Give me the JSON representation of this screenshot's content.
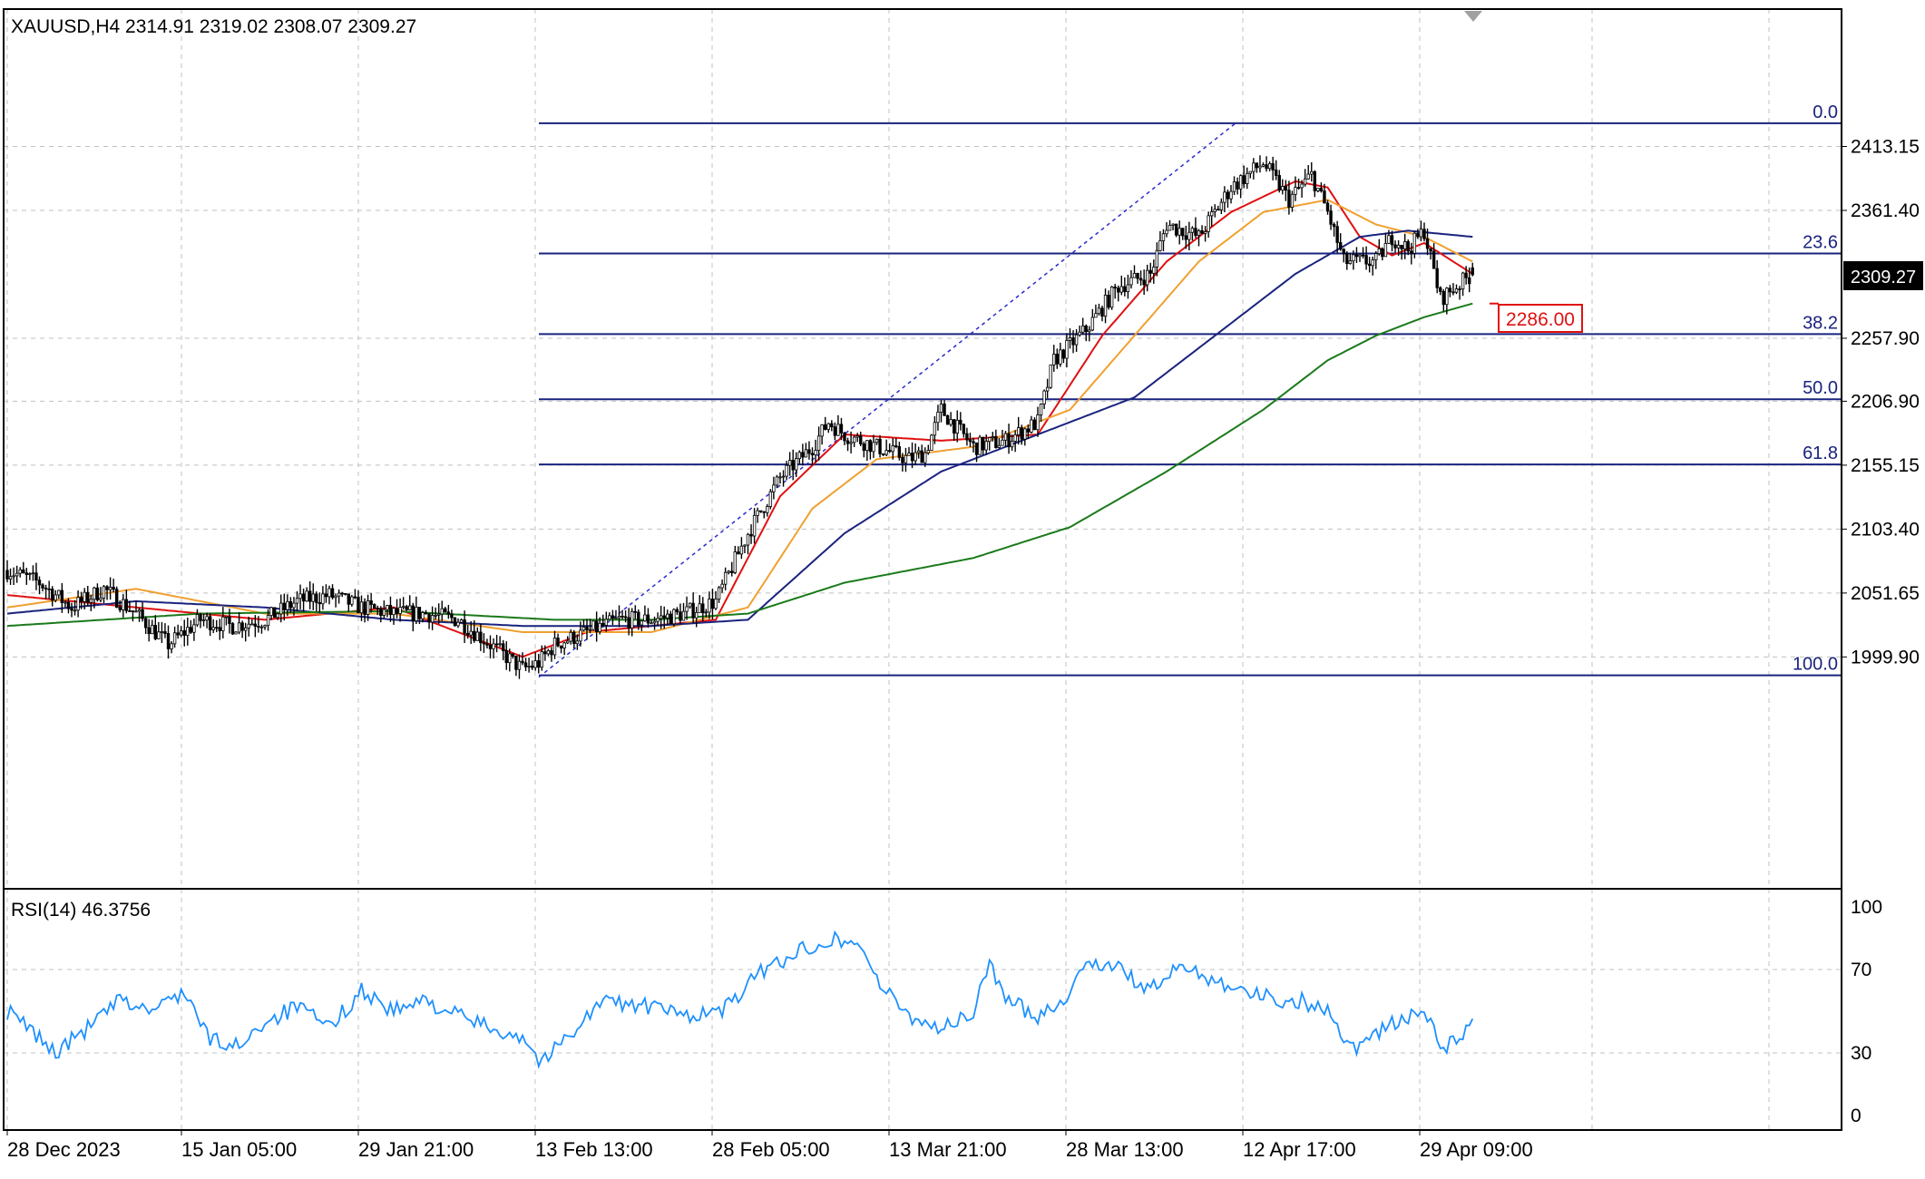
{
  "symbol_header": "XAUUSD,H4  2314.91 2319.02 2308.07 2309.27",
  "indicator_header": "RSI(14) 46.3756",
  "colors": {
    "background": "#ffffff",
    "frame": "#000000",
    "grid": "#c0c0c0",
    "candle": "#000000",
    "fib": "#1a237e",
    "trend": "#2a2ad0",
    "ma_fast": "#e01010",
    "ma_mid": "#f0a030",
    "ma_slow": "#1a237e",
    "ma_long": "#1a7a1a",
    "rsi": "#1e90ff",
    "alert": "#e01010"
  },
  "chart_data": [
    {
      "type": "line",
      "subtype": "candlestick",
      "instrument": "XAUUSD",
      "timeframe": "H4",
      "ohlc_last": {
        "open": 2314.91,
        "high": 2319.02,
        "low": 2308.07,
        "close": 2309.27
      },
      "x_tick_labels": [
        "28 Dec 2023",
        "15 Jan 05:00",
        "29 Jan 21:00",
        "13 Feb 13:00",
        "28 Feb 05:00",
        "13 Mar 21:00",
        "28 Mar 13:00",
        "12 Apr 17:00",
        "29 Apr 09:00"
      ],
      "y_tick_labels": [
        "2413.15",
        "2361.40",
        "2257.90",
        "2206.90",
        "2155.15",
        "2103.40",
        "2051.65",
        "1999.90"
      ],
      "ylim": [
        1975,
        2460
      ],
      "current_price": "2309.27",
      "alert_level": "2286.00",
      "fibonacci": {
        "high": 2432,
        "low": 1985,
        "levels": [
          {
            "label": "0.0",
            "ratio": 0.0
          },
          {
            "label": "23.6",
            "ratio": 0.236
          },
          {
            "label": "38.2",
            "ratio": 0.382
          },
          {
            "label": "50.0",
            "ratio": 0.5
          },
          {
            "label": "61.8",
            "ratio": 0.618
          },
          {
            "label": "100.0",
            "ratio": 1.0
          }
        ]
      },
      "trendline": {
        "from": {
          "bar": 0,
          "y": 1985
        },
        "to": {
          "bar": 0,
          "y": 2432
        }
      },
      "price_anchors": [
        [
          0,
          2070
        ],
        [
          10,
          2060
        ],
        [
          20,
          2040
        ],
        [
          30,
          2055
        ],
        [
          40,
          2035
        ],
        [
          50,
          2010
        ],
        [
          60,
          2030
        ],
        [
          70,
          2025
        ],
        [
          80,
          2030
        ],
        [
          90,
          2045
        ],
        [
          100,
          2050
        ],
        [
          110,
          2040
        ],
        [
          120,
          2035
        ],
        [
          130,
          2035
        ],
        [
          140,
          2030
        ],
        [
          150,
          2010
        ],
        [
          160,
          1990
        ],
        [
          165,
          1995
        ],
        [
          170,
          2010
        ],
        [
          180,
          2020
        ],
        [
          190,
          2030
        ],
        [
          200,
          2030
        ],
        [
          210,
          2035
        ],
        [
          220,
          2045
        ],
        [
          230,
          2100
        ],
        [
          240,
          2145
        ],
        [
          250,
          2170
        ],
        [
          255,
          2190
        ],
        [
          260,
          2180
        ],
        [
          270,
          2170
        ],
        [
          280,
          2160
        ],
        [
          285,
          2165
        ],
        [
          290,
          2200
        ],
        [
          295,
          2185
        ],
        [
          300,
          2170
        ],
        [
          310,
          2175
        ],
        [
          320,
          2190
        ],
        [
          325,
          2240
        ],
        [
          335,
          2265
        ],
        [
          345,
          2300
        ],
        [
          355,
          2310
        ],
        [
          360,
          2350
        ],
        [
          370,
          2340
        ],
        [
          380,
          2380
        ],
        [
          390,
          2400
        ],
        [
          398,
          2370
        ],
        [
          405,
          2390
        ],
        [
          410,
          2360
        ],
        [
          415,
          2320
        ],
        [
          425,
          2320
        ],
        [
          430,
          2340
        ],
        [
          435,
          2330
        ],
        [
          440,
          2345
        ],
        [
          445,
          2290
        ],
        [
          450,
          2300
        ],
        [
          455,
          2310
        ]
      ],
      "series": [
        {
          "name": "",
          "role": "ma_fast",
          "values": [
            [
              0,
              2050
            ],
            [
              40,
              2040
            ],
            [
              80,
              2030
            ],
            [
              120,
              2040
            ],
            [
              160,
              2000
            ],
            [
              180,
              2020
            ],
            [
              220,
              2030
            ],
            [
              240,
              2130
            ],
            [
              260,
              2180
            ],
            [
              290,
              2175
            ],
            [
              320,
              2180
            ],
            [
              340,
              2260
            ],
            [
              360,
              2320
            ],
            [
              380,
              2360
            ],
            [
              400,
              2385
            ],
            [
              410,
              2380
            ],
            [
              420,
              2340
            ],
            [
              430,
              2325
            ],
            [
              440,
              2335
            ],
            [
              455,
              2310
            ]
          ]
        },
        {
          "name": "",
          "role": "ma_mid",
          "values": [
            [
              0,
              2040
            ],
            [
              40,
              2055
            ],
            [
              80,
              2035
            ],
            [
              120,
              2035
            ],
            [
              160,
              2020
            ],
            [
              200,
              2020
            ],
            [
              230,
              2040
            ],
            [
              250,
              2120
            ],
            [
              270,
              2160
            ],
            [
              300,
              2170
            ],
            [
              330,
              2200
            ],
            [
              350,
              2260
            ],
            [
              370,
              2320
            ],
            [
              390,
              2360
            ],
            [
              410,
              2370
            ],
            [
              425,
              2350
            ],
            [
              440,
              2340
            ],
            [
              455,
              2320
            ]
          ]
        },
        {
          "name": "",
          "role": "ma_slow",
          "values": [
            [
              0,
              2035
            ],
            [
              40,
              2045
            ],
            [
              80,
              2040
            ],
            [
              120,
              2030
            ],
            [
              160,
              2025
            ],
            [
              200,
              2025
            ],
            [
              230,
              2030
            ],
            [
              260,
              2100
            ],
            [
              290,
              2150
            ],
            [
              320,
              2180
            ],
            [
              350,
              2210
            ],
            [
              380,
              2270
            ],
            [
              400,
              2310
            ],
            [
              420,
              2340
            ],
            [
              435,
              2345
            ],
            [
              455,
              2340
            ]
          ]
        },
        {
          "name": "",
          "role": "ma_long",
          "values": [
            [
              0,
              2025
            ],
            [
              60,
              2035
            ],
            [
              120,
              2037
            ],
            [
              170,
              2030
            ],
            [
              200,
              2030
            ],
            [
              230,
              2035
            ],
            [
              260,
              2060
            ],
            [
              300,
              2080
            ],
            [
              330,
              2105
            ],
            [
              360,
              2150
            ],
            [
              390,
              2200
            ],
            [
              410,
              2240
            ],
            [
              425,
              2260
            ],
            [
              440,
              2275
            ],
            [
              455,
              2286
            ]
          ]
        }
      ]
    },
    {
      "type": "line",
      "name": "RSI(14)",
      "value": "46.3756",
      "y_tick_labels": [
        "100",
        "70",
        "30",
        "0"
      ],
      "ylim": [
        0,
        100
      ],
      "rsi_anchors": [
        [
          0,
          50
        ],
        [
          8,
          40
        ],
        [
          15,
          30
        ],
        [
          25,
          42
        ],
        [
          35,
          55
        ],
        [
          45,
          50
        ],
        [
          55,
          60
        ],
        [
          62,
          38
        ],
        [
          70,
          32
        ],
        [
          80,
          45
        ],
        [
          90,
          52
        ],
        [
          100,
          42
        ],
        [
          110,
          60
        ],
        [
          120,
          50
        ],
        [
          130,
          55
        ],
        [
          140,
          48
        ],
        [
          150,
          42
        ],
        [
          160,
          38
        ],
        [
          166,
          25
        ],
        [
          175,
          40
        ],
        [
          185,
          55
        ],
        [
          200,
          52
        ],
        [
          210,
          48
        ],
        [
          222,
          50
        ],
        [
          235,
          70
        ],
        [
          245,
          78
        ],
        [
          255,
          85
        ],
        [
          265,
          82
        ],
        [
          272,
          60
        ],
        [
          280,
          48
        ],
        [
          290,
          42
        ],
        [
          300,
          48
        ],
        [
          305,
          75
        ],
        [
          310,
          55
        ],
        [
          320,
          48
        ],
        [
          330,
          58
        ],
        [
          335,
          75
        ],
        [
          345,
          70
        ],
        [
          355,
          60
        ],
        [
          365,
          72
        ],
        [
          375,
          65
        ],
        [
          385,
          60
        ],
        [
          395,
          55
        ],
        [
          402,
          55
        ],
        [
          410,
          50
        ],
        [
          418,
          32
        ],
        [
          425,
          40
        ],
        [
          432,
          45
        ],
        [
          440,
          50
        ],
        [
          446,
          32
        ],
        [
          452,
          38
        ],
        [
          455,
          46
        ]
      ]
    }
  ]
}
